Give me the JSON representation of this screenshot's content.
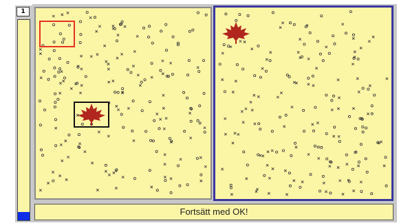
{
  "progress": {
    "page_number": "1",
    "fill_fraction": 0.04,
    "fill_color": "#0e2ee8"
  },
  "status": {
    "message": "Fortsätt med OK!"
  },
  "colors": {
    "panel_bg": "#fbf5a6",
    "frame_gray": "#c8c8c8",
    "selected_panel_border": "#3a37a0",
    "red_marker": "#e63122",
    "leaf": "#b1261e"
  },
  "icons": {
    "target": "maple-leaf-icon"
  }
}
